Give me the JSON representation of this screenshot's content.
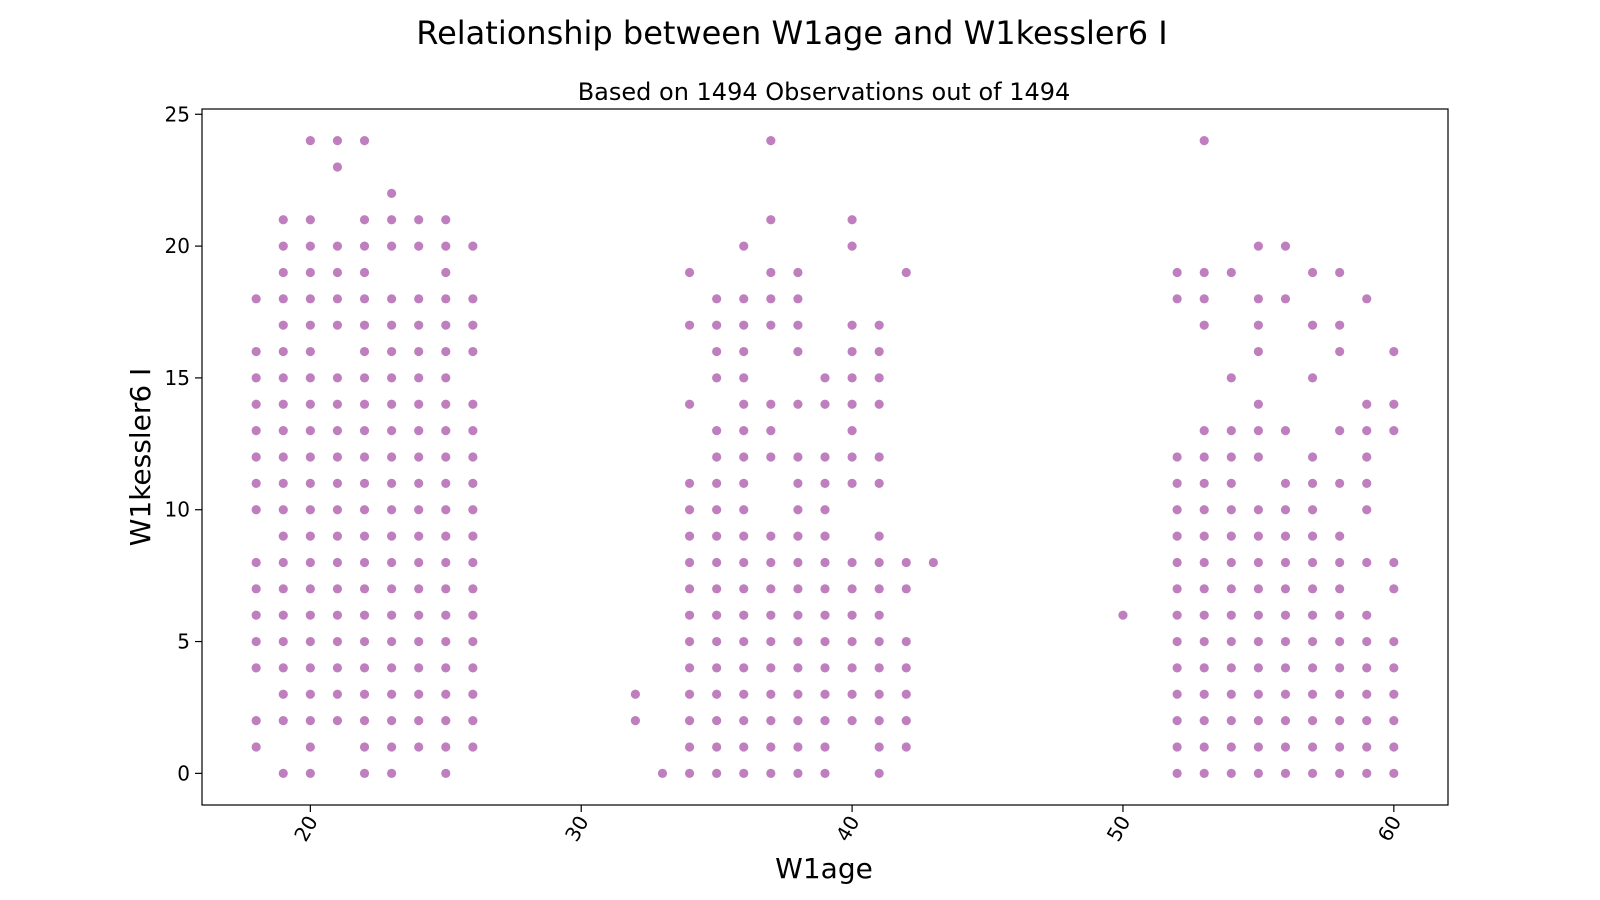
{
  "chart_data": {
    "type": "scatter",
    "title": "Relationship between W1age and W1kessler6 I",
    "subtitle": "Based on 1494 Observations out of 1494",
    "xlabel": "W1age",
    "ylabel": "W1kessler6 I",
    "xlim": [
      16,
      62
    ],
    "ylim": [
      -1.2,
      25.2
    ],
    "xticks": [
      20,
      30,
      40,
      50,
      60
    ],
    "yticks": [
      0,
      5,
      10,
      15,
      20,
      25
    ],
    "x_tick_rotation": 60,
    "grid": false,
    "marker_color": "#800080",
    "marker_alpha": 0.5,
    "points_by_x": {
      "18": [
        1,
        2,
        4,
        5,
        6,
        7,
        8,
        10,
        11,
        12,
        13,
        14,
        15,
        16,
        18
      ],
      "19": [
        0,
        2,
        3,
        4,
        5,
        6,
        7,
        8,
        9,
        10,
        11,
        12,
        13,
        14,
        15,
        16,
        17,
        18,
        19,
        20,
        21
      ],
      "20": [
        0,
        1,
        2,
        3,
        4,
        5,
        6,
        7,
        8,
        9,
        10,
        11,
        12,
        13,
        14,
        15,
        16,
        17,
        18,
        19,
        20,
        21,
        24
      ],
      "21": [
        2,
        3,
        4,
        5,
        6,
        7,
        8,
        9,
        10,
        11,
        12,
        13,
        14,
        15,
        17,
        18,
        19,
        20,
        23,
        24
      ],
      "22": [
        0,
        1,
        2,
        3,
        4,
        5,
        6,
        7,
        8,
        9,
        10,
        11,
        12,
        13,
        14,
        15,
        16,
        17,
        18,
        19,
        20,
        21,
        24
      ],
      "23": [
        0,
        1,
        2,
        3,
        4,
        5,
        6,
        7,
        8,
        9,
        10,
        11,
        12,
        13,
        14,
        15,
        16,
        17,
        18,
        20,
        21,
        22
      ],
      "24": [
        1,
        2,
        3,
        4,
        5,
        6,
        7,
        8,
        9,
        10,
        11,
        12,
        13,
        14,
        15,
        16,
        17,
        18,
        20,
        21
      ],
      "25": [
        0,
        1,
        2,
        3,
        4,
        5,
        6,
        7,
        8,
        9,
        10,
        11,
        12,
        13,
        14,
        15,
        16,
        17,
        18,
        19,
        20,
        21
      ],
      "26": [
        1,
        2,
        3,
        4,
        5,
        6,
        7,
        8,
        9,
        10,
        11,
        12,
        13,
        14,
        16,
        17,
        18,
        20
      ],
      "32": [
        2,
        3
      ],
      "33": [
        0
      ],
      "34": [
        0,
        1,
        2,
        3,
        4,
        5,
        6,
        7,
        8,
        9,
        10,
        11,
        14,
        17,
        19
      ],
      "35": [
        0,
        1,
        2,
        3,
        4,
        5,
        6,
        7,
        8,
        9,
        10,
        11,
        12,
        13,
        15,
        16,
        17,
        18
      ],
      "36": [
        0,
        1,
        2,
        3,
        4,
        5,
        6,
        7,
        8,
        9,
        10,
        11,
        12,
        13,
        14,
        15,
        16,
        17,
        18,
        20
      ],
      "37": [
        0,
        1,
        2,
        3,
        4,
        5,
        6,
        7,
        8,
        9,
        12,
        13,
        14,
        17,
        18,
        19,
        21,
        24
      ],
      "38": [
        0,
        1,
        2,
        3,
        4,
        5,
        6,
        7,
        8,
        9,
        10,
        11,
        12,
        14,
        16,
        17,
        18,
        19
      ],
      "39": [
        0,
        1,
        2,
        3,
        4,
        5,
        6,
        7,
        8,
        9,
        10,
        11,
        12,
        14,
        15
      ],
      "40": [
        2,
        3,
        4,
        5,
        6,
        7,
        8,
        11,
        12,
        13,
        14,
        15,
        16,
        17,
        20,
        21
      ],
      "41": [
        0,
        1,
        2,
        3,
        4,
        5,
        6,
        7,
        8,
        9,
        11,
        12,
        14,
        15,
        16,
        17
      ],
      "42": [
        1,
        2,
        3,
        4,
        5,
        7,
        8,
        19
      ],
      "43": [
        8
      ],
      "50": [
        6
      ],
      "52": [
        0,
        1,
        2,
        3,
        4,
        5,
        6,
        7,
        8,
        9,
        10,
        11,
        12,
        18,
        19
      ],
      "53": [
        0,
        1,
        2,
        3,
        4,
        5,
        6,
        7,
        8,
        9,
        10,
        11,
        12,
        13,
        17,
        18,
        19,
        24
      ],
      "54": [
        0,
        1,
        2,
        3,
        4,
        5,
        6,
        7,
        8,
        9,
        10,
        11,
        12,
        13,
        15,
        19
      ],
      "55": [
        0,
        1,
        2,
        3,
        4,
        5,
        6,
        7,
        8,
        9,
        10,
        12,
        13,
        14,
        16,
        17,
        18,
        20
      ],
      "56": [
        0,
        1,
        2,
        3,
        4,
        5,
        6,
        7,
        8,
        9,
        10,
        11,
        13,
        18,
        20
      ],
      "57": [
        0,
        1,
        2,
        3,
        4,
        5,
        6,
        7,
        8,
        9,
        10,
        11,
        12,
        15,
        17,
        19
      ],
      "58": [
        0,
        1,
        2,
        3,
        4,
        5,
        6,
        7,
        8,
        9,
        11,
        13,
        16,
        17,
        19
      ],
      "59": [
        0,
        1,
        2,
        3,
        4,
        5,
        6,
        8,
        10,
        11,
        12,
        13,
        14,
        18
      ],
      "60": [
        0,
        1,
        2,
        3,
        4,
        5,
        7,
        8,
        13,
        14,
        16
      ]
    }
  }
}
